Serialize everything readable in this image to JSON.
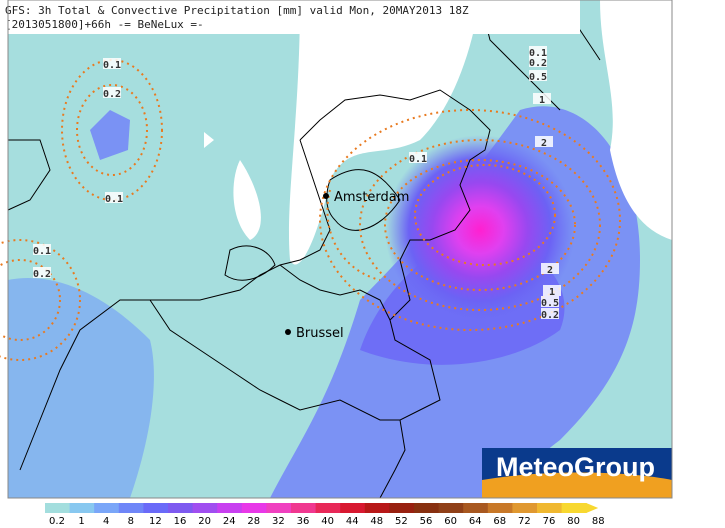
{
  "header": {
    "line1": "GFS: 3h Total & Convective Precipitation [mm] valid Mon, 20MAY2013 18Z",
    "line2": "[2013051800]+66h -= BeNeLux =-"
  },
  "cities": [
    "Amsterdam",
    "Brussel"
  ],
  "contour_labels": [
    "0.1",
    "0.2",
    "0.1",
    "0.1",
    "0.2",
    "0.1",
    "0.2",
    "0.5",
    "1",
    "0.1",
    "2",
    "2",
    "1",
    "0.5",
    "0.2"
  ],
  "logo": "MeteoGroup",
  "colorbar": {
    "labels": [
      "0.2",
      "1",
      "4",
      "8",
      "12",
      "16",
      "20",
      "24",
      "28",
      "32",
      "36",
      "40",
      "44",
      "48",
      "52",
      "56",
      "60",
      "64",
      "68",
      "72",
      "76",
      "80",
      "88"
    ],
    "colors": [
      "#a3dede",
      "#88c8f0",
      "#7aa6f8",
      "#6f86f8",
      "#6a6af8",
      "#7e5af0",
      "#a04ef0",
      "#c840f0",
      "#e838e8",
      "#f040c0",
      "#f03890",
      "#e82858",
      "#d81830",
      "#b81818",
      "#982010",
      "#883010",
      "#904018",
      "#a85820",
      "#c87828",
      "#e09830",
      "#f0b830",
      "#f8d830"
    ]
  }
}
